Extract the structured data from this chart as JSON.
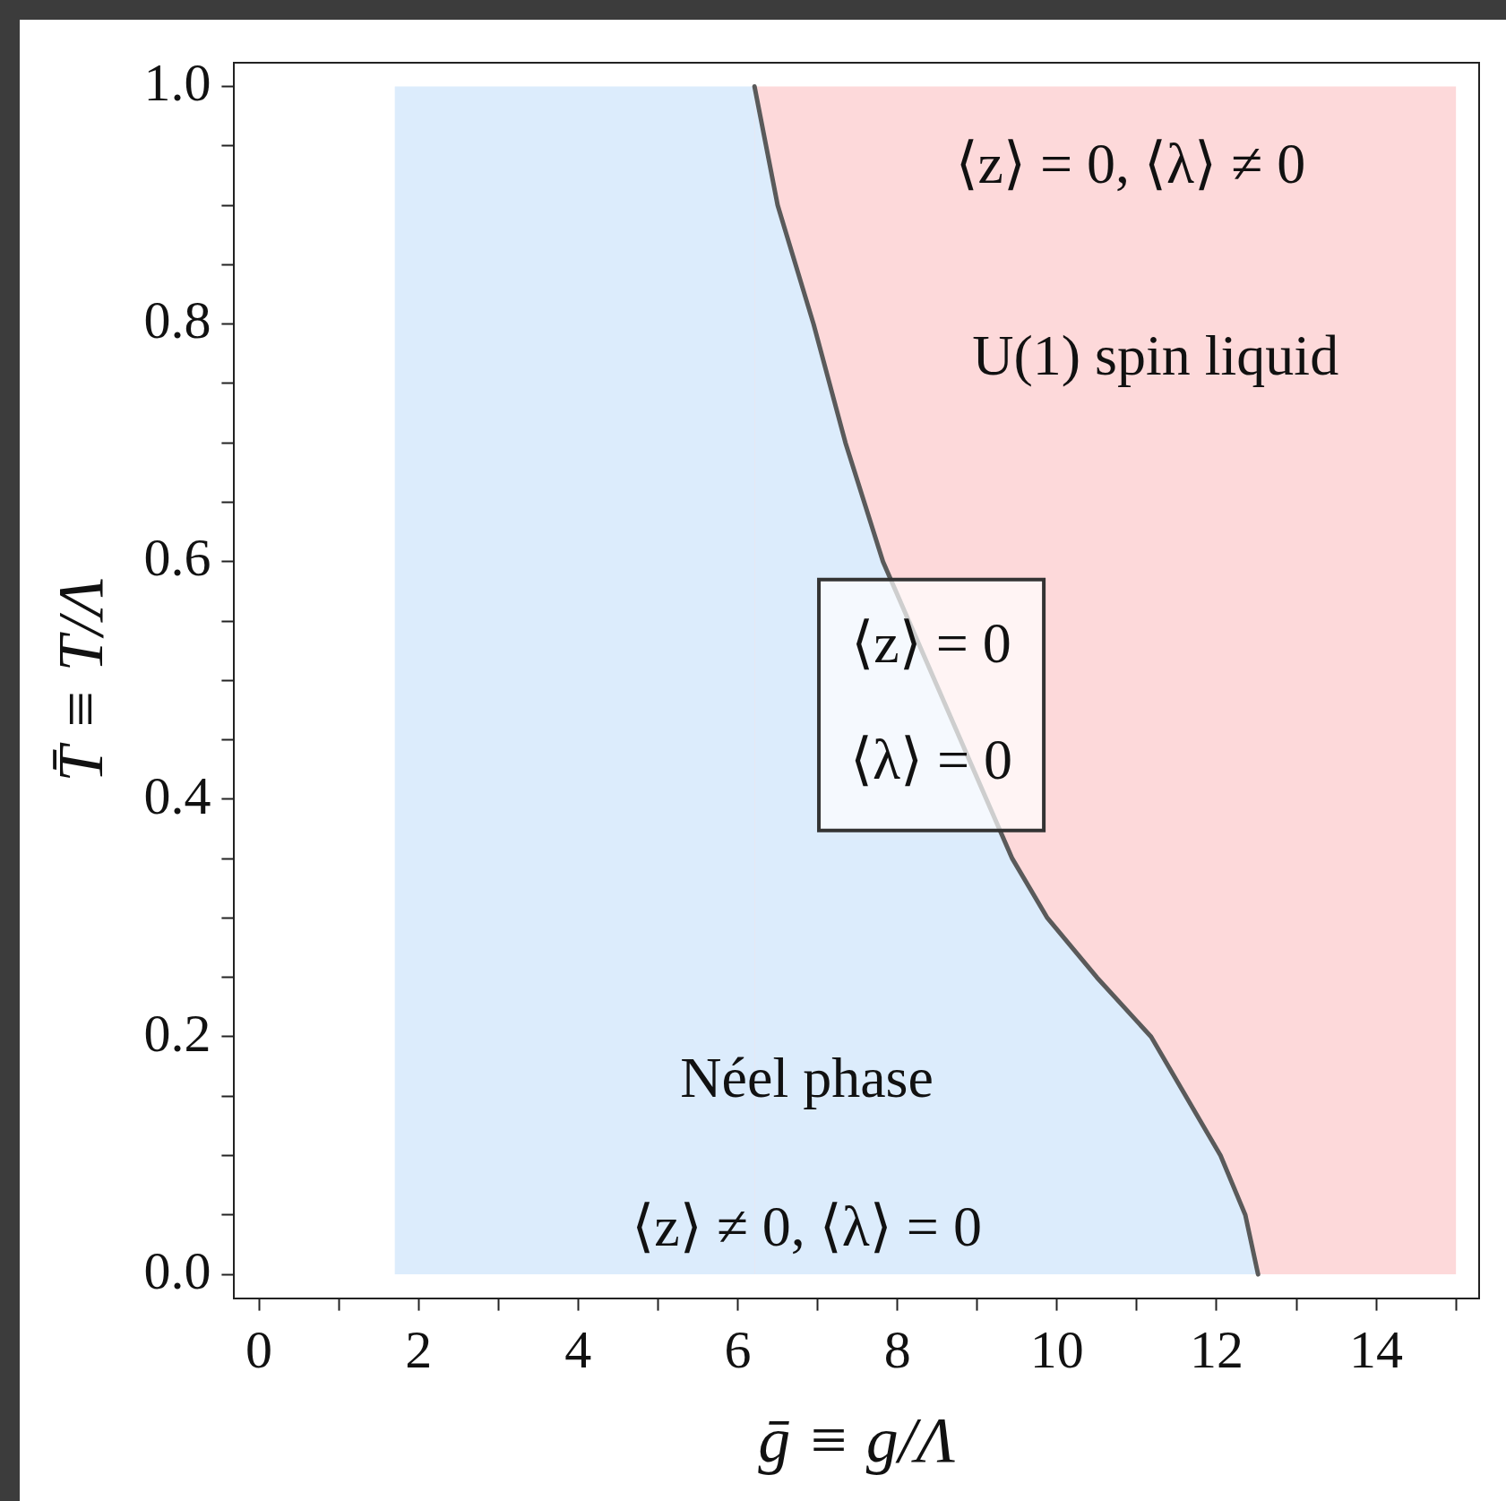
{
  "chart_data": {
    "type": "area",
    "xlabel": "ḡ ≡ g/Λ",
    "ylabel": "T̄ ≡ T/Λ",
    "xlim": [
      -0.31,
      15.29
    ],
    "ylim": [
      -0.02,
      1.02
    ],
    "xticks": [
      0,
      {
        "value": 1,
        "label": null
      },
      2,
      {
        "value": 3,
        "label": null
      },
      4,
      {
        "value": 5,
        "label": null
      },
      6,
      {
        "value": 7,
        "label": null
      },
      8,
      {
        "value": 9,
        "label": null
      },
      10,
      {
        "value": 11,
        "label": null
      },
      12,
      {
        "value": 13,
        "label": null
      },
      14,
      {
        "value": 15,
        "label": null
      }
    ],
    "yticks": [
      {
        "value": 0,
        "label": "0.0"
      },
      {
        "value": 0.05,
        "label": null
      },
      {
        "value": 0.1,
        "label": null
      },
      {
        "value": 0.15,
        "label": null
      },
      0.2,
      {
        "value": 0.25,
        "label": null
      },
      {
        "value": 0.3,
        "label": null
      },
      {
        "value": 0.35,
        "label": null
      },
      0.4,
      {
        "value": 0.45,
        "label": null
      },
      {
        "value": 0.5,
        "label": null
      },
      {
        "value": 0.55,
        "label": null
      },
      0.6,
      {
        "value": 0.65,
        "label": null
      },
      {
        "value": 0.7,
        "label": null
      },
      {
        "value": 0.75,
        "label": null
      },
      0.8,
      {
        "value": 0.85,
        "label": null
      },
      {
        "value": 0.9,
        "label": null
      },
      {
        "value": 0.95,
        "label": null
      },
      {
        "value": 1,
        "label": "1.0"
      }
    ],
    "grid": false,
    "legend": false,
    "bands": [
      {
        "axis": "x",
        "from": 6.21,
        "to": 15,
        "color": "#fdd9da"
      }
    ],
    "series": [
      {
        "color": "#dcecfc",
        "x": [
          1.7,
          6.21,
          6.5,
          6.95,
          7.35,
          7.82,
          9.44,
          9.88,
          10.5,
          11.18,
          12.05,
          12.36,
          12.52
        ],
        "values": [
          1,
          1,
          0.9,
          0.8,
          0.7,
          0.6,
          0.35,
          0.3,
          0.25,
          0.2,
          0.1,
          0.05,
          0
        ]
      }
    ],
    "annotations": [
      "⟨z⟩ = 0, ⟨λ⟩ ≠ 0",
      "U(1) spin liquid",
      "⟨z⟩ = 0\n⟨λ⟩ = 0",
      "Néel phase",
      "⟨z⟩ ≠ 0, ⟨λ⟩ = 0"
    ]
  }
}
